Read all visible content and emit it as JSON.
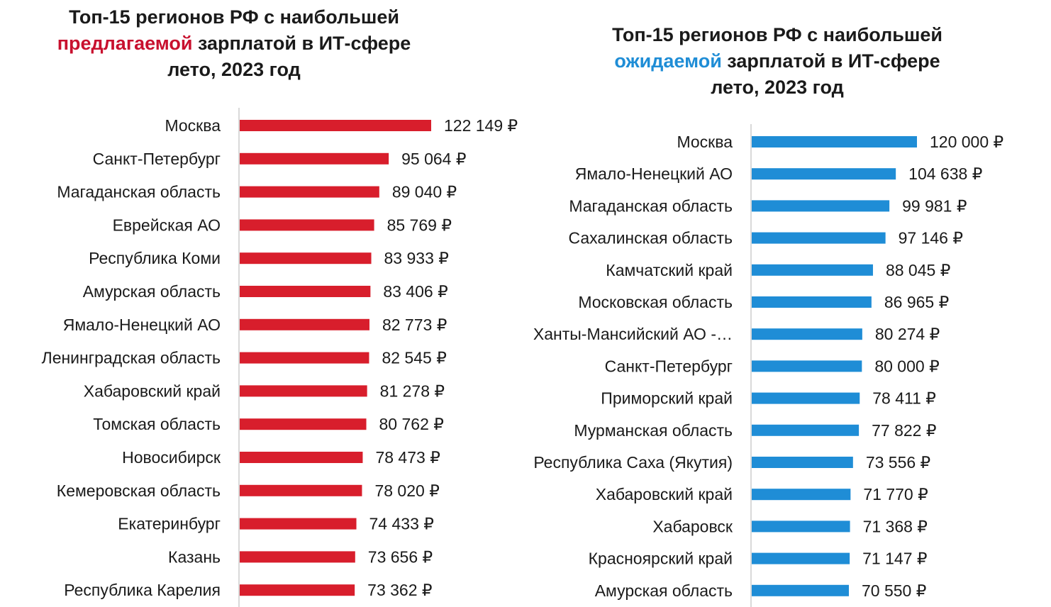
{
  "chart_data": [
    {
      "type": "bar",
      "orientation": "horizontal",
      "title": {
        "line1": "Топ-15 регионов РФ с наибольшей",
        "highlight": "предлагаемой",
        "line2_rest": " зарплатой в ИТ-сфере",
        "line3": "лето, 2023 год"
      },
      "color": "#d81e2c",
      "highlight_color": "#c8102e",
      "currency": "₽",
      "categories": [
        "Москва",
        "Санкт-Петербург",
        "Магаданская область",
        "Еврейская АО",
        "Республика Коми",
        "Амурская область",
        "Ямало-Ненецкий АО",
        "Ленинградская область",
        "Хабаровский край",
        "Томская область",
        "Новосибирск",
        "Кемеровская область",
        "Екатеринбург",
        "Казань",
        "Республика Карелия"
      ],
      "values": [
        122149,
        95064,
        89040,
        85769,
        83933,
        83406,
        82773,
        82545,
        81278,
        80762,
        78473,
        78020,
        74433,
        73656,
        73362
      ],
      "value_labels": [
        "122 149 ₽",
        "95 064 ₽",
        "89 040 ₽",
        "85 769 ₽",
        "83 933 ₽",
        "83 406 ₽",
        "82 773 ₽",
        "82 545 ₽",
        "81 278 ₽",
        "80 762 ₽",
        "78 473 ₽",
        "78 020 ₽",
        "74 433 ₽",
        "73 656 ₽",
        "73 362 ₽"
      ],
      "xlim": [
        0,
        122149
      ],
      "grid": false,
      "legend": "none"
    },
    {
      "type": "bar",
      "orientation": "horizontal",
      "title": {
        "line1": "Топ-15 регионов РФ с наибольшей",
        "highlight": "ожидаемой",
        "line2_rest": " зарплатой в ИТ-сфере",
        "line3": "лето, 2023 год"
      },
      "color": "#1f8dd6",
      "highlight_color": "#1f8dd6",
      "currency": "₽",
      "categories": [
        "Москва",
        "Ямало-Ненецкий АО",
        "Магаданская область",
        "Сахалинская область",
        "Камчатский край",
        "Московская область",
        "Ханты-Мансийский АО -…",
        "Санкт-Петербург",
        "Приморский край",
        "Мурманская область",
        "Республика Саха (Якутия)",
        "Хабаровский край",
        "Хабаровск",
        "Красноярский край",
        "Амурская область"
      ],
      "values": [
        120000,
        104638,
        99981,
        97146,
        88045,
        86965,
        80274,
        80000,
        78411,
        77822,
        73556,
        71770,
        71368,
        71147,
        70550
      ],
      "value_labels": [
        "120 000 ₽",
        "104 638 ₽",
        "99 981 ₽",
        "97 146 ₽",
        "88 045 ₽",
        "86 965 ₽",
        "80 274 ₽",
        "80 000 ₽",
        "78 411 ₽",
        "77 822 ₽",
        "73 556 ₽",
        "71 770 ₽",
        "71 368 ₽",
        "71 147 ₽",
        "70 550 ₽"
      ],
      "xlim": [
        0,
        120000
      ],
      "grid": false,
      "legend": "none"
    }
  ]
}
